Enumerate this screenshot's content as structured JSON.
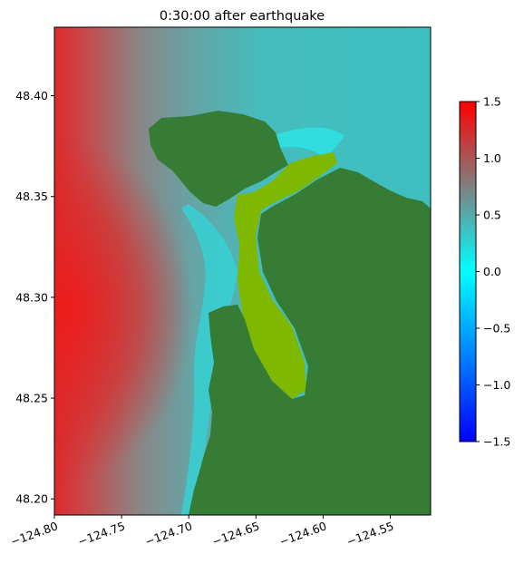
{
  "chart_data": {
    "type": "heatmap",
    "title": "0:30:00 after earthquake",
    "xlabel": "",
    "ylabel": "",
    "xlim": [
      -124.8,
      -124.52
    ],
    "ylim": [
      48.192,
      48.434
    ],
    "x_ticks": [
      -124.8,
      -124.75,
      -124.7,
      -124.65,
      -124.6,
      -124.55
    ],
    "x_tick_labels": [
      "−124.80",
      "−124.75",
      "−124.70",
      "−124.65",
      "−124.60",
      "−124.55"
    ],
    "y_ticks": [
      48.2,
      48.25,
      48.3,
      48.35,
      48.4
    ],
    "y_tick_labels": [
      "48.20",
      "48.25",
      "48.30",
      "48.35",
      "48.40"
    ],
    "colorbar": {
      "range": [
        -1.5,
        1.5
      ],
      "ticks": [
        1.5,
        1.0,
        0.5,
        0.0,
        -0.5,
        -1.0,
        -1.5
      ],
      "tick_labels": [
        "1.5",
        "1.0",
        "0.5",
        "0.0",
        "−0.5",
        "−1.0",
        "−1.5"
      ],
      "colors": [
        "#0000ff",
        "#00ffff",
        "#808080",
        "#ff0000"
      ]
    },
    "land_color": "#367c34",
    "onshore_color": "#7fb800",
    "grid": false
  }
}
